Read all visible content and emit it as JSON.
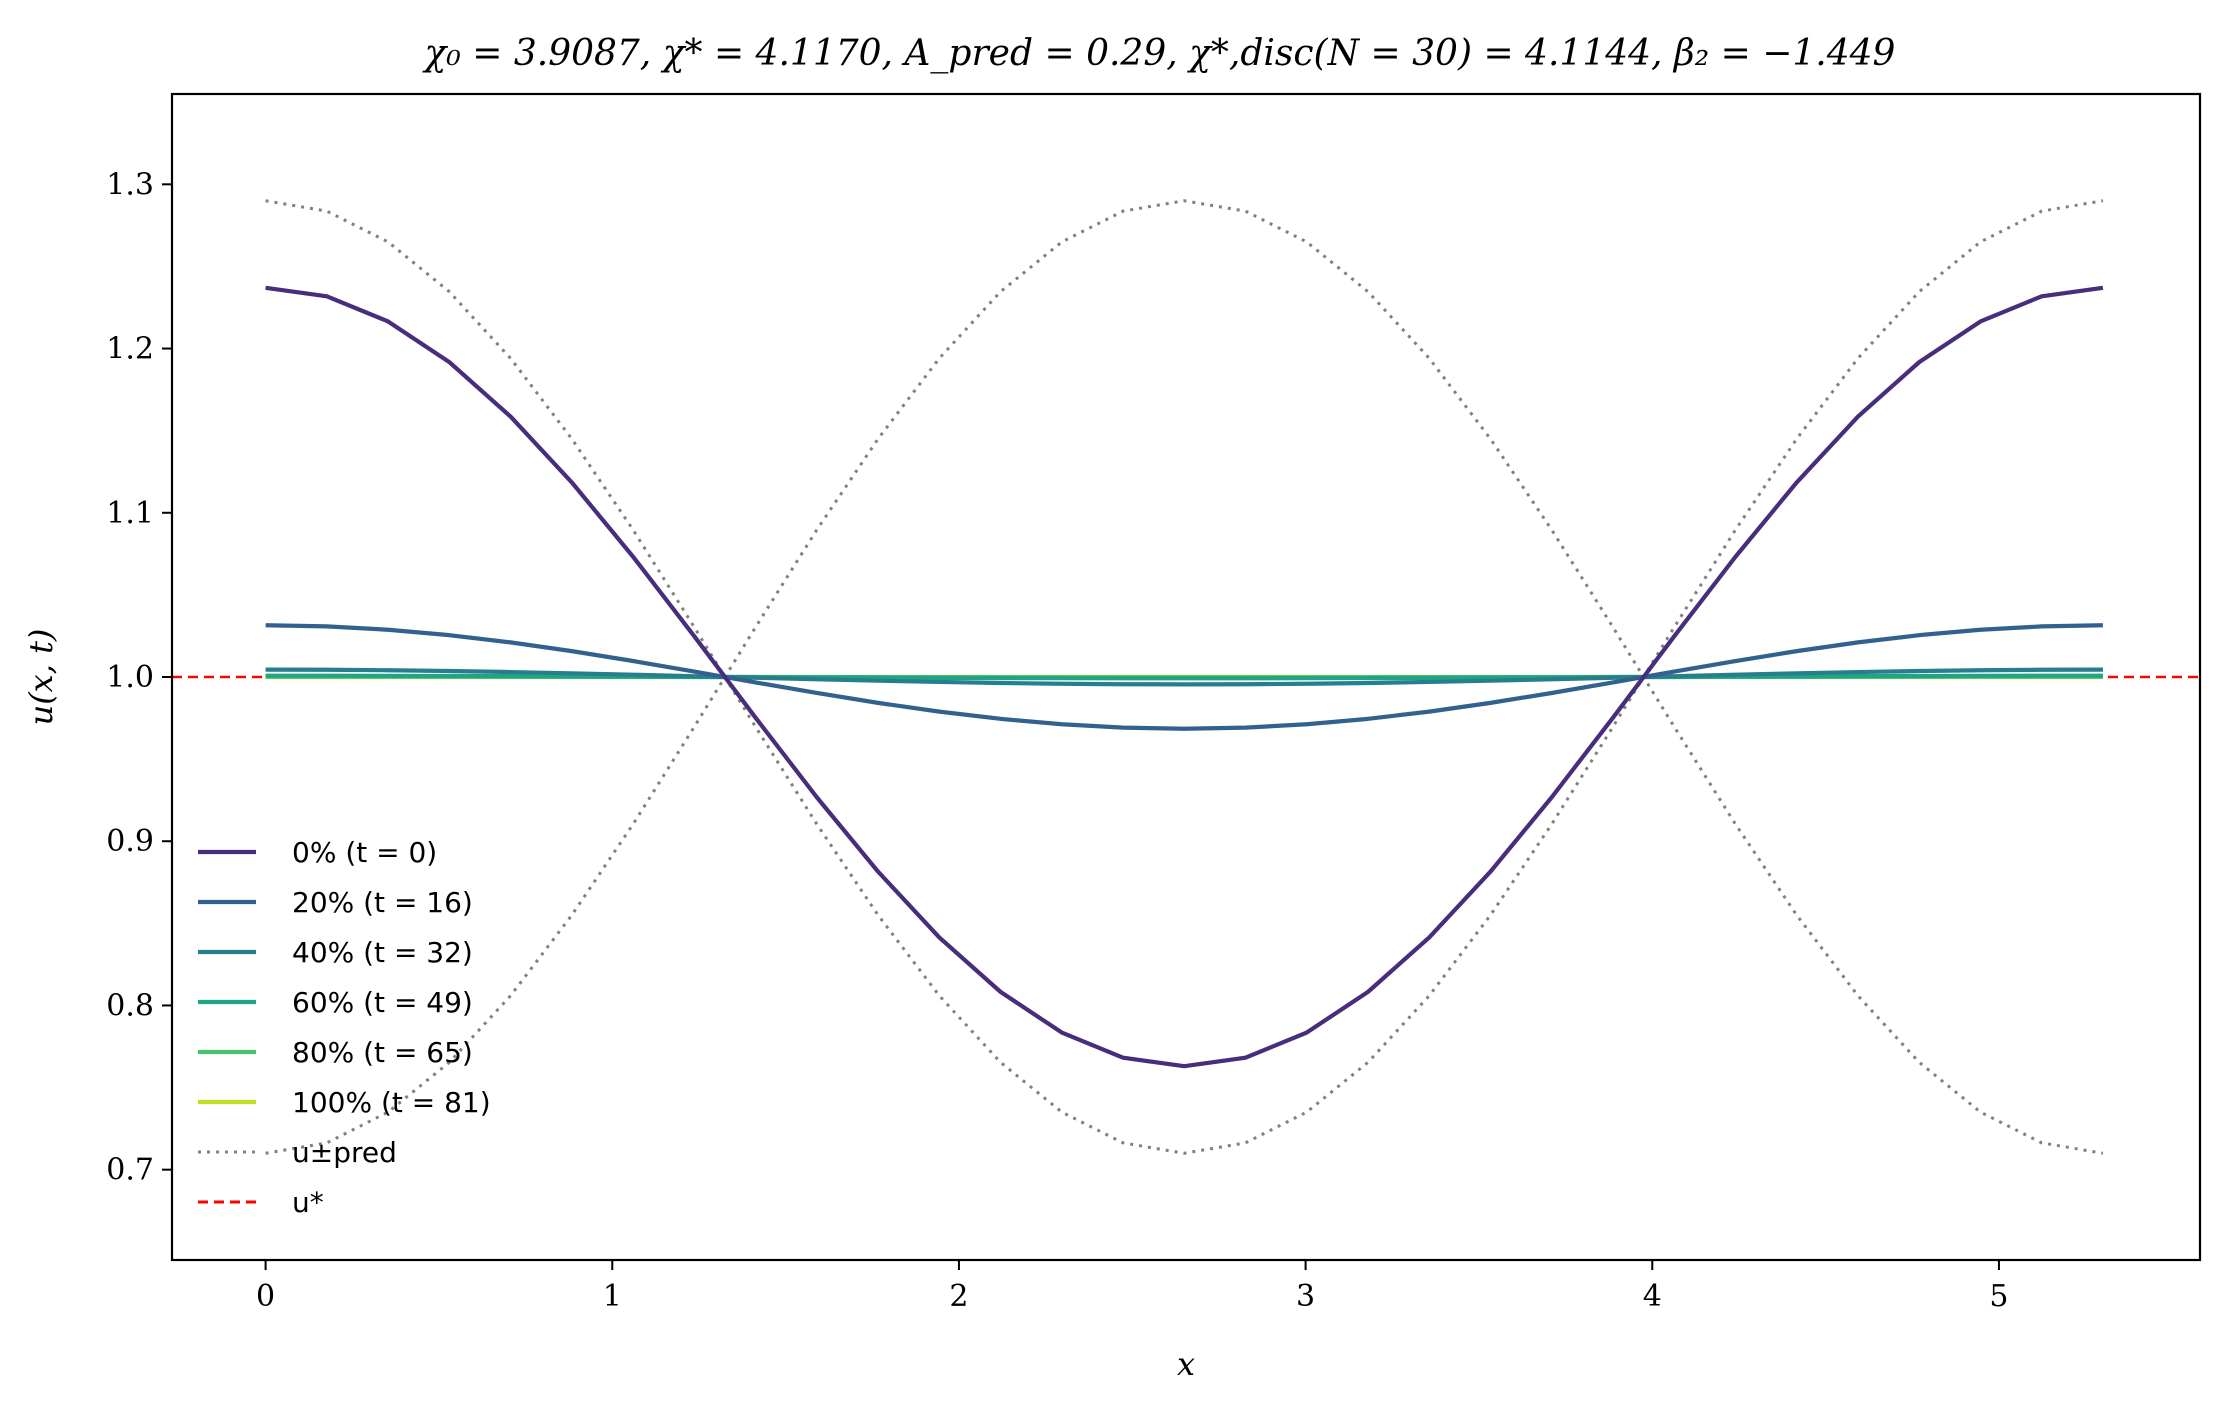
{
  "chart_data": {
    "type": "line",
    "title": "χ₀ = 3.9087,  χ* = 4.1170,  A_pred = 0.29,  χ*,disc(N = 30) = 4.1144,  β₂ = −1.449",
    "xlabel": "x",
    "ylabel": "u(x, t)",
    "xlim": [
      -0.27,
      5.58
    ],
    "ylim": [
      0.645,
      1.355
    ],
    "xticks": [
      0,
      1,
      2,
      3,
      4,
      5
    ],
    "yticks": [
      0.7,
      0.8,
      0.9,
      1.0,
      1.1,
      1.2,
      1.3
    ],
    "xtick_labels": [
      "0",
      "1",
      "2",
      "3",
      "4",
      "5"
    ],
    "ytick_labels": [
      "0.7",
      "0.8",
      "0.9",
      "1.0",
      "1.1",
      "1.2",
      "1.3"
    ],
    "grid": false,
    "legend_position": "lower-left",
    "domain_length": 5.3,
    "n_points": 31,
    "series": [
      {
        "name": "0% (t = 0)",
        "amplitude": 0.237,
        "color": "#472d7b",
        "style": "solid"
      },
      {
        "name": "20% (t = 16)",
        "amplitude": 0.0315,
        "color": "#31628f",
        "style": "solid"
      },
      {
        "name": "40% (t = 32)",
        "amplitude": 0.0045,
        "color": "#277f8e",
        "style": "solid"
      },
      {
        "name": "60% (t = 49)",
        "amplitude": 0.0008,
        "color": "#20a386",
        "style": "solid"
      },
      {
        "name": "80% (t = 65)",
        "amplitude": 0.0002,
        "color": "#4ac16d",
        "style": "solid"
      },
      {
        "name": "100% (t = 81)",
        "amplitude": 0.0,
        "color": "#c2df23",
        "style": "solid"
      },
      {
        "name": "u±pred",
        "amplitude": 0.29,
        "color": "#808080",
        "style": "dotted",
        "both_signs": true
      },
      {
        "name": "u*",
        "value": 1.0,
        "color": "#ff0000",
        "style": "dashed",
        "full_width": true
      }
    ]
  }
}
